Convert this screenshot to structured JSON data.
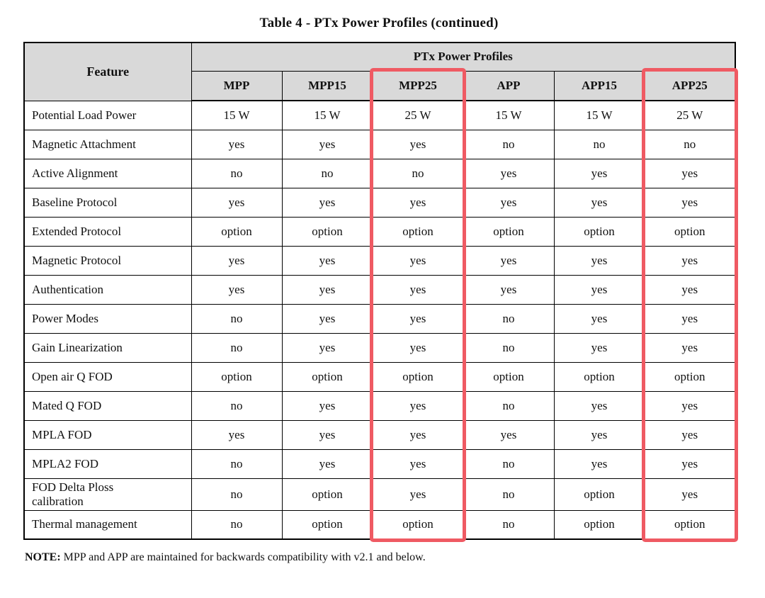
{
  "page": {
    "title": "Table 4 - PTx Power Profiles (continued)",
    "note": {
      "label": "NOTE:",
      "text": "MPP and APP are maintained for backwards compatibility with v2.1 and below."
    }
  },
  "colors": {
    "header_bg": "#d9d9d9",
    "table_border": "#000000",
    "highlight_border": "#ef5a63"
  },
  "table": {
    "feature_header": "Feature",
    "group_header": "PTx Power Profiles",
    "columns": [
      "MPP",
      "MPP15",
      "MPP25",
      "APP",
      "APP15",
      "APP25"
    ],
    "highlighted_columns": [
      "MPP25",
      "APP25"
    ],
    "rows": [
      {
        "feature": "Potential Load Power",
        "values": [
          "15 W",
          "15 W",
          "25 W",
          "15 W",
          "15 W",
          "25 W"
        ]
      },
      {
        "feature": "Magnetic Attachment",
        "values": [
          "yes",
          "yes",
          "yes",
          "no",
          "no",
          "no"
        ]
      },
      {
        "feature": "Active Alignment",
        "values": [
          "no",
          "no",
          "no",
          "yes",
          "yes",
          "yes"
        ]
      },
      {
        "feature": "Baseline Protocol",
        "values": [
          "yes",
          "yes",
          "yes",
          "yes",
          "yes",
          "yes"
        ]
      },
      {
        "feature": "Extended Protocol",
        "values": [
          "option",
          "option",
          "option",
          "option",
          "option",
          "option"
        ]
      },
      {
        "feature": "Magnetic Protocol",
        "values": [
          "yes",
          "yes",
          "yes",
          "yes",
          "yes",
          "yes"
        ]
      },
      {
        "feature": "Authentication",
        "values": [
          "yes",
          "yes",
          "yes",
          "yes",
          "yes",
          "yes"
        ]
      },
      {
        "feature": "Power Modes",
        "values": [
          "no",
          "yes",
          "yes",
          "no",
          "yes",
          "yes"
        ]
      },
      {
        "feature": "Gain Linearization",
        "values": [
          "no",
          "yes",
          "yes",
          "no",
          "yes",
          "yes"
        ]
      },
      {
        "feature": "Open air Q FOD",
        "values": [
          "option",
          "option",
          "option",
          "option",
          "option",
          "option"
        ]
      },
      {
        "feature": "Mated Q FOD",
        "values": [
          "no",
          "yes",
          "yes",
          "no",
          "yes",
          "yes"
        ]
      },
      {
        "feature": "MPLA FOD",
        "values": [
          "yes",
          "yes",
          "yes",
          "yes",
          "yes",
          "yes"
        ]
      },
      {
        "feature": "MPLA2 FOD",
        "values": [
          "no",
          "yes",
          "yes",
          "no",
          "yes",
          "yes"
        ]
      },
      {
        "feature": "FOD Delta Ploss\ncalibration",
        "values": [
          "no",
          "option",
          "yes",
          "no",
          "option",
          "yes"
        ]
      },
      {
        "feature": "Thermal management",
        "values": [
          "no",
          "option",
          "option",
          "no",
          "option",
          "option"
        ]
      }
    ]
  }
}
